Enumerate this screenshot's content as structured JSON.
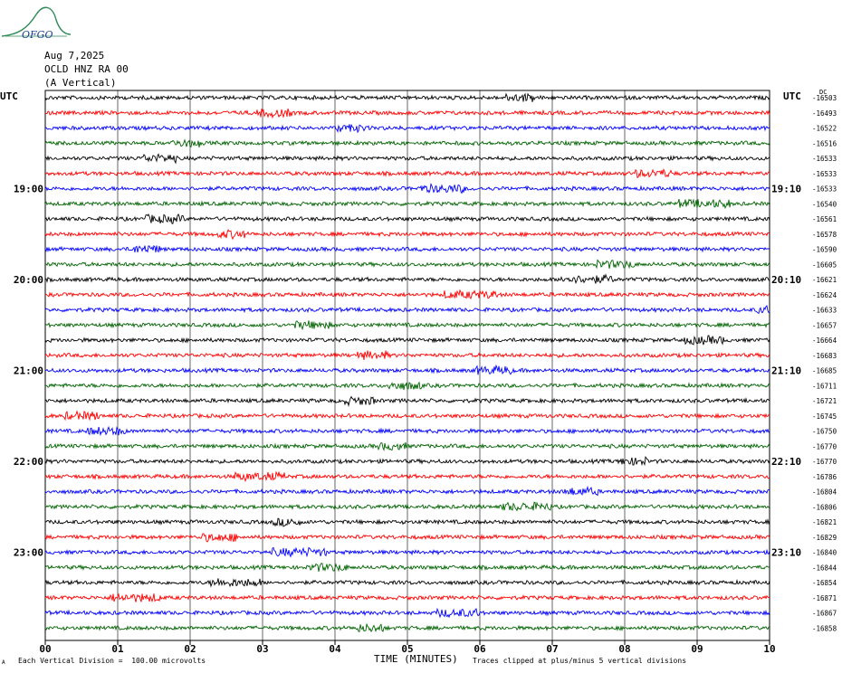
{
  "header": {
    "date": "Aug 7,2025",
    "station": "OCLD HNZ RA 00",
    "component": "(A Vertical)"
  },
  "logo": {
    "text": "OFGO",
    "icon": "ofgo-wave-logo"
  },
  "labels": {
    "utc_left": "UTC",
    "utc_right": "UTC",
    "dc": "DC"
  },
  "footer": {
    "division": "Each Vertical Division =  100.00 microvolts",
    "clipped": "Traces clipped at plus/minus 5 vertical divisions",
    "mark": "A"
  },
  "chart_data": {
    "type": "line",
    "title": "",
    "xlabel": "TIME (MINUTES)",
    "x_ticks": [
      "00",
      "01",
      "02",
      "03",
      "04",
      "05",
      "06",
      "07",
      "08",
      "09",
      "10"
    ],
    "xlim": [
      0,
      10
    ],
    "trace_count": 36,
    "trace_colors": [
      "#000000",
      "#ff0000",
      "#0000ff",
      "#006400"
    ],
    "left_time_labels": [
      {
        "trace": 6,
        "label": "19:00"
      },
      {
        "trace": 12,
        "label": "20:00"
      },
      {
        "trace": 18,
        "label": "21:00"
      },
      {
        "trace": 24,
        "label": "22:00"
      },
      {
        "trace": 30,
        "label": "23:00"
      }
    ],
    "right_time_labels": [
      {
        "trace": 6,
        "label": "19:10"
      },
      {
        "trace": 12,
        "label": "20:10"
      },
      {
        "trace": 18,
        "label": "21:10"
      },
      {
        "trace": 24,
        "label": "22:10"
      },
      {
        "trace": 30,
        "label": "23:10"
      }
    ],
    "dc_offsets": [
      "-16503",
      "-16493",
      "-16522",
      "-16516",
      "-16533",
      "-16533",
      "-16533",
      "-16540",
      "-16561",
      "-16578",
      "-16590",
      "-16605",
      "-16621",
      "-16624",
      "-16633",
      "-16657",
      "-16664",
      "-16683",
      "-16685",
      "-16711",
      "-16721",
      "-16745",
      "-16750",
      "-16770",
      "-16770",
      "-16786",
      "-16804",
      "-16806",
      "-16821",
      "-16829",
      "-16840",
      "-16844",
      "-16854",
      "-16871",
      "-16867",
      "-16858"
    ]
  }
}
